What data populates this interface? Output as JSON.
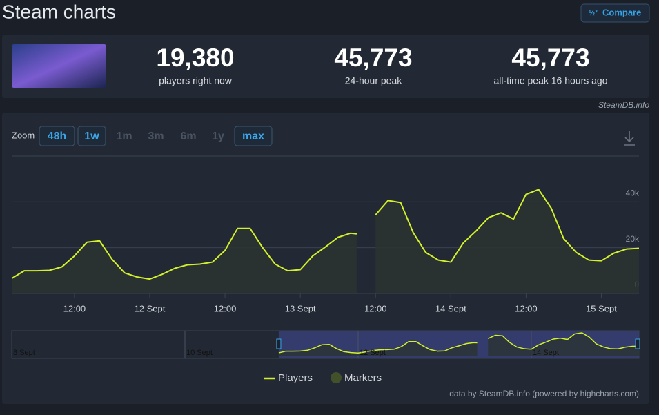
{
  "header": {
    "title": "Steam charts",
    "compare": "Compare"
  },
  "stats": [
    {
      "value": "19,380",
      "label": "players right now"
    },
    {
      "value": "45,773",
      "label": "24-hour peak"
    },
    {
      "value": "45,773",
      "label": "all-time peak 16 hours ago"
    }
  ],
  "source": "SteamDB.info",
  "zoom": {
    "label": "Zoom",
    "buttons": [
      {
        "label": "48h",
        "enabled": true
      },
      {
        "label": "1w",
        "enabled": true
      },
      {
        "label": "1m",
        "enabled": false
      },
      {
        "label": "3m",
        "enabled": false
      },
      {
        "label": "6m",
        "enabled": false
      },
      {
        "label": "1y",
        "enabled": false
      },
      {
        "label": "max",
        "enabled": true
      }
    ]
  },
  "chart_data": {
    "type": "line",
    "x": [
      2,
      4,
      6,
      8,
      10,
      12,
      14,
      16,
      18,
      20,
      22,
      24,
      26,
      28,
      30,
      32,
      34,
      36,
      38,
      40,
      42,
      44,
      46,
      48,
      50,
      52,
      54,
      56,
      57,
      58,
      60,
      62,
      64,
      66,
      68,
      70,
      72,
      74,
      76,
      78,
      80,
      82,
      84,
      86,
      88,
      90,
      92,
      94,
      96,
      98,
      100,
      102
    ],
    "series": [
      {
        "name": "Players",
        "color": "#d4f22c",
        "values": [
          6600,
          9900,
          9900,
          10100,
          11600,
          16400,
          22400,
          23000,
          14900,
          9000,
          7200,
          6300,
          8400,
          11000,
          12500,
          12800,
          13700,
          18800,
          28400,
          28400,
          20000,
          12800,
          9900,
          10400,
          16400,
          20300,
          24500,
          26300,
          26000,
          null,
          34300,
          40600,
          39700,
          26600,
          17900,
          14600,
          13700,
          22100,
          27200,
          33100,
          35200,
          32500,
          43300,
          45400,
          37300,
          23900,
          17900,
          14600,
          14300,
          17600,
          19400,
          19700
        ]
      }
    ],
    "markers": {
      "name": "Markers",
      "color": "#43512b"
    },
    "xlim": [
      2,
      102
    ],
    "xticks": [
      {
        "value": 12,
        "label": "12:00"
      },
      {
        "value": 24,
        "label": "12 Sept"
      },
      {
        "value": 36,
        "label": "12:00"
      },
      {
        "value": 48,
        "label": "13 Sept"
      },
      {
        "value": 60,
        "label": "12:00"
      },
      {
        "value": 72,
        "label": "14 Sept"
      },
      {
        "value": 84,
        "label": "12:00"
      },
      {
        "value": 96,
        "label": "15 Sept"
      }
    ],
    "ylim": [
      0,
      60000
    ],
    "yticks": [
      0,
      {
        "value": 20000,
        "label": "20k"
      },
      {
        "value": 40000,
        "label": "40k"
      }
    ],
    "grid": true,
    "navigator_labels": [
      "8 Sept",
      "10 Sept",
      "12 Sept",
      "14 Sept"
    ],
    "credits": "data by SteamDB.info (powered by highcharts.com)"
  }
}
